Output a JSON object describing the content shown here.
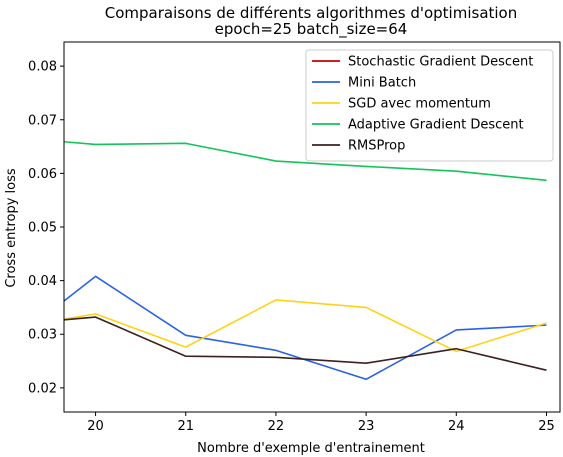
{
  "chart_data": {
    "type": "line",
    "title": "Comparaisons de différents algorithmes d'optimisation",
    "subtitle": "epoch=25 batch_size=64",
    "xlabel": "Nombre d'exemple d'entrainement",
    "ylabel": "Cross entropy loss",
    "x": [
      19.65,
      20,
      21,
      22,
      23,
      24,
      25
    ],
    "xlim": [
      19.65,
      25.15
    ],
    "ylim": [
      0.0155,
      0.0845
    ],
    "xticks": [
      "20",
      "21",
      "22",
      "23",
      "24",
      "25"
    ],
    "yticks": [
      "0.02",
      "0.03",
      "0.04",
      "0.05",
      "0.06",
      "0.07",
      "0.08"
    ],
    "grid": false,
    "legend_position": "top-right",
    "series": [
      {
        "name": "Stochastic Gradient Descent",
        "color": "#cc0000",
        "values": [
          null,
          null,
          null,
          null,
          null,
          null,
          null
        ]
      },
      {
        "name": "Mini Batch",
        "color": "#2a62e6",
        "values": [
          0.0362,
          0.0408,
          0.0298,
          0.027,
          0.0216,
          0.0308,
          0.0317
        ]
      },
      {
        "name": "SGD avec momentum",
        "color": "#ffd21a",
        "values": [
          0.0328,
          0.0338,
          0.0276,
          0.0364,
          0.035,
          0.0268,
          0.0321
        ]
      },
      {
        "name": "Adaptive Gradient Descent",
        "color": "#14c35a",
        "values": [
          0.0659,
          0.0654,
          0.0656,
          0.0623,
          0.0613,
          0.0604,
          0.0587
        ]
      },
      {
        "name": "RMSProp",
        "color": "#3b2220",
        "values": [
          0.0327,
          0.0332,
          0.0259,
          0.0257,
          0.0246,
          0.0273,
          0.0233
        ]
      }
    ]
  }
}
